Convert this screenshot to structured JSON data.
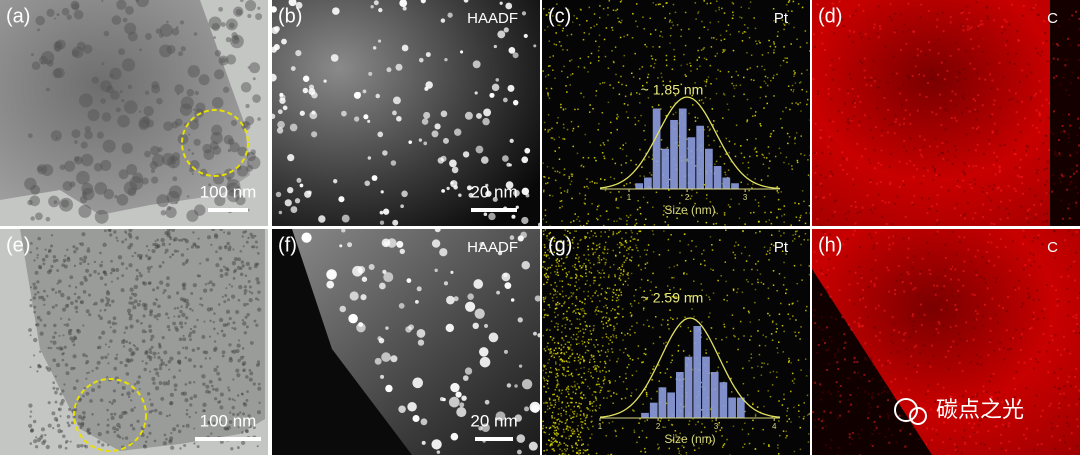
{
  "panels": [
    {
      "label": "(a)",
      "scale_bar": "100 nm"
    },
    {
      "label": "(b)",
      "tag": "HAADF",
      "scale_bar": "20 nm"
    },
    {
      "label": "(c)",
      "tag": "Pt",
      "inset": {
        "annotation": "~ 1.85 nm",
        "xlabel": "Size (nm)",
        "xlim": [
          0.5,
          3.6
        ],
        "ylim": [
          0,
          16
        ],
        "xticks": [
          1,
          2,
          3
        ],
        "bins": [
          1.1,
          1.25,
          1.4,
          1.55,
          1.7,
          1.85,
          2.0,
          2.15,
          2.3,
          2.45,
          2.6,
          2.75,
          2.9
        ],
        "counts": [
          1,
          2,
          14,
          7,
          12,
          14,
          9,
          11,
          7,
          4,
          2,
          1
        ]
      }
    },
    {
      "label": "(d)",
      "tag": "C"
    },
    {
      "label": "(e)",
      "scale_bar": "100 nm"
    },
    {
      "label": "(f)",
      "tag": "HAADF",
      "scale_bar": "20 nm"
    },
    {
      "label": "(g)",
      "tag": "Pt",
      "inset": {
        "annotation": "~ 2.59 nm",
        "xlabel": "Size (nm)",
        "xlim": [
          1,
          4.1
        ],
        "ylim": [
          0,
          18
        ],
        "xticks": [
          1,
          2,
          3,
          4
        ],
        "bins": [
          1.7,
          1.85,
          2.0,
          2.15,
          2.3,
          2.45,
          2.6,
          2.75,
          2.9,
          3.05,
          3.2,
          3.35,
          3.5
        ],
        "counts": [
          1,
          3,
          6,
          5,
          9,
          12,
          18,
          12,
          9,
          7,
          4,
          4
        ]
      }
    },
    {
      "label": "(h)",
      "tag": "C"
    }
  ],
  "watermark": "碳点之光"
}
